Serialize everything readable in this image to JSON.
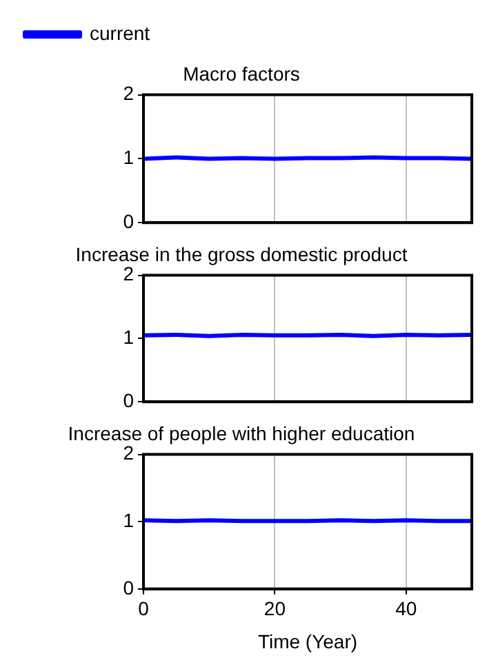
{
  "chart_data": [
    {
      "type": "line",
      "title": "Macro factors",
      "x": [
        0,
        5,
        10,
        15,
        20,
        25,
        30,
        35,
        40,
        45,
        50
      ],
      "series": [
        {
          "name": "current",
          "color": "#0000ff",
          "values": [
            1.0,
            1.02,
            1.0,
            1.01,
            1.0,
            1.01,
            1.01,
            1.02,
            1.01,
            1.01,
            1.0
          ]
        }
      ],
      "xlim": [
        0,
        50
      ],
      "xticks": [
        0,
        20,
        40
      ],
      "ylim": [
        0,
        2
      ],
      "yticks": [
        0,
        1,
        2
      ],
      "grid": "x",
      "legend": "top left",
      "tick_labels": "y",
      "marker": "none",
      "line_style": "solid"
    },
    {
      "type": "line",
      "title": "Increase in the gross domestic product",
      "x": [
        0,
        5,
        10,
        15,
        20,
        25,
        30,
        35,
        40,
        45,
        50
      ],
      "series": [
        {
          "color": "#0000ff",
          "values": [
            1.05,
            1.06,
            1.04,
            1.06,
            1.05,
            1.05,
            1.06,
            1.04,
            1.06,
            1.05,
            1.06
          ]
        }
      ],
      "xlim": [
        0,
        50
      ],
      "xticks": [
        0,
        20,
        40
      ],
      "ylim": [
        0,
        2
      ],
      "yticks": [
        0,
        1,
        2
      ],
      "grid": "x",
      "tick_labels": "y",
      "marker": "none",
      "line_style": "solid"
    },
    {
      "type": "line",
      "title": "Increase of people with higher education",
      "xlabel": "Time (Year)",
      "x": [
        0,
        5,
        10,
        15,
        20,
        25,
        30,
        35,
        40,
        45,
        50
      ],
      "series": [
        {
          "color": "#0000ff",
          "values": [
            1.02,
            1.01,
            1.02,
            1.01,
            1.01,
            1.01,
            1.02,
            1.01,
            1.02,
            1.01,
            1.01
          ]
        }
      ],
      "xlim": [
        0,
        50
      ],
      "xticks": [
        0,
        20,
        40
      ],
      "ylim": [
        0,
        2
      ],
      "yticks": [
        0,
        1,
        2
      ],
      "grid": "x",
      "marker": "none",
      "line_style": "solid"
    }
  ]
}
